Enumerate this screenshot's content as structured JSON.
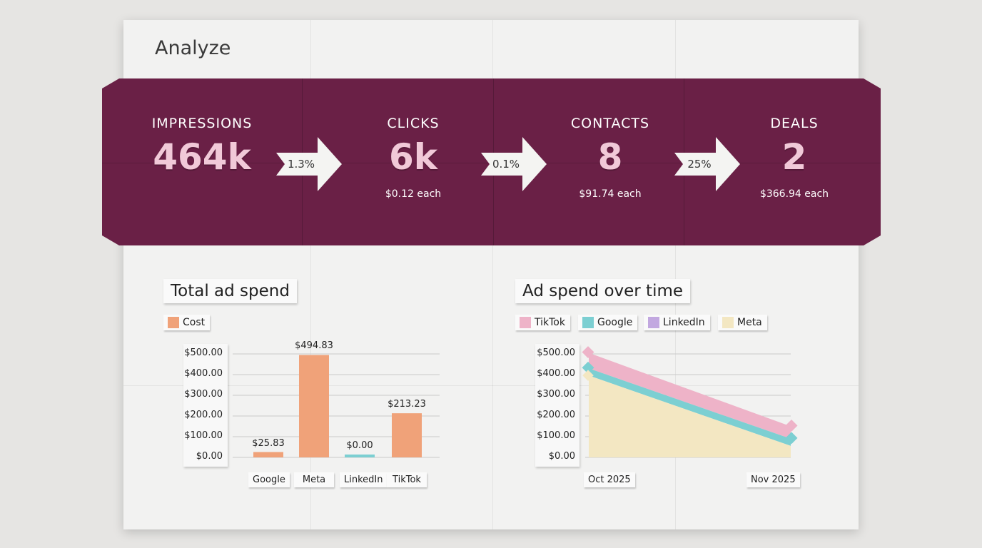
{
  "page": {
    "title": "Analyze"
  },
  "funnel": {
    "stages": [
      {
        "label": "IMPRESSIONS",
        "value": "464k",
        "sub": ""
      },
      {
        "label": "CLICKS",
        "value": "6k",
        "sub": "$0.12 each"
      },
      {
        "label": "CONTACTS",
        "value": "8",
        "sub": "$91.74 each"
      },
      {
        "label": "DEALS",
        "value": "2",
        "sub": "$366.94 each"
      }
    ],
    "rates": [
      "1.3%",
      "0.1%",
      "25%"
    ]
  },
  "colors": {
    "banner": "#6a2046",
    "cost": "#f0a279",
    "tiktok": "#eeb3c8",
    "google": "#7ccfd2",
    "linkedin": "#c2a8e0",
    "meta": "#f3e7c2"
  },
  "chart_data": [
    {
      "type": "bar",
      "title": "Total ad spend",
      "series": [
        {
          "name": "Cost",
          "values": [
            25.83,
            494.83,
            0.0,
            213.23
          ]
        }
      ],
      "categories": [
        "Google",
        "Meta",
        "LinkedIn",
        "TikTok"
      ],
      "data_labels": [
        "$25.83",
        "$494.83",
        "$0.00",
        "$213.23"
      ],
      "y_ticks": [
        "$0.00",
        "$100.00",
        "$200.00",
        "$300.00",
        "$400.00",
        "$500.00"
      ],
      "ylim": [
        0,
        500
      ],
      "grid": true,
      "legend": "top-left"
    },
    {
      "type": "area",
      "title": "Ad spend over time",
      "x": [
        "Oct 2025",
        "Nov 2025"
      ],
      "series": [
        {
          "name": "Meta",
          "values": [
            395,
            5
          ]
        },
        {
          "name": "Google",
          "values": [
            430,
            90
          ]
        },
        {
          "name": "LinkedIn",
          "values": [
            430,
            90
          ]
        },
        {
          "name": "TikTok",
          "values": [
            505,
            150
          ]
        }
      ],
      "stacked": false,
      "y_ticks": [
        "$0.00",
        "$100.00",
        "$200.00",
        "$300.00",
        "$400.00",
        "$500.00"
      ],
      "ylim": [
        0,
        500
      ],
      "legend_order": [
        "TikTok",
        "Google",
        "LinkedIn",
        "Meta"
      ],
      "grid": true,
      "legend": "top-left"
    }
  ]
}
